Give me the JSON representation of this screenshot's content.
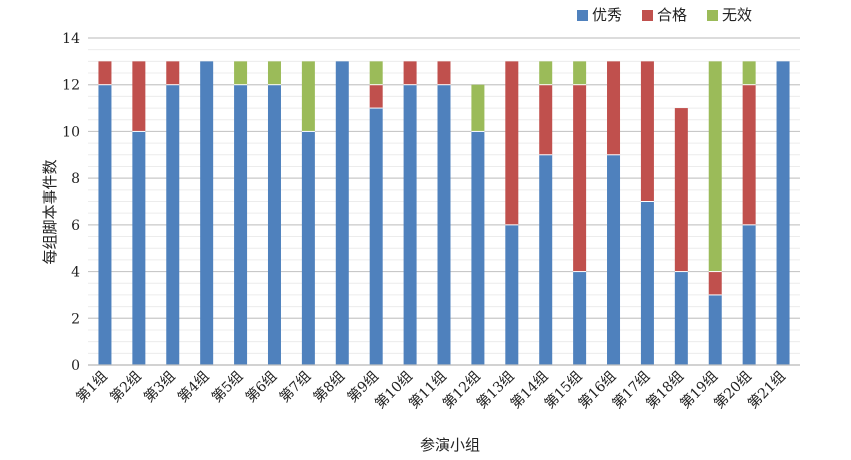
{
  "chart_data": {
    "type": "bar",
    "stacked": true,
    "title": "",
    "xlabel": "参演小组",
    "ylabel": "每组脚本事件数",
    "ylim": [
      0,
      14
    ],
    "yticks": [
      0,
      2,
      4,
      6,
      8,
      10,
      12,
      14
    ],
    "grid": true,
    "legend_position": "top-right",
    "categories": [
      "第1组",
      "第2组",
      "第3组",
      "第4组",
      "第5组",
      "第6组",
      "第7组",
      "第8组",
      "第9组",
      "第10组",
      "第11组",
      "第12组",
      "第13组",
      "第14组",
      "第15组",
      "第16组",
      "第17组",
      "第18组",
      "第19组",
      "第20组",
      "第21组"
    ],
    "series": [
      {
        "name": "优秀",
        "color": "#4f81bd",
        "values": [
          12,
          10,
          12,
          13,
          12,
          12,
          10,
          13,
          11,
          12,
          12,
          10,
          6,
          9,
          4,
          9,
          7,
          4,
          3,
          6,
          13
        ]
      },
      {
        "name": "合格",
        "color": "#c0504d",
        "values": [
          1,
          3,
          1,
          0,
          0,
          0,
          0,
          0,
          1,
          1,
          1,
          0,
          7,
          3,
          8,
          4,
          6,
          7,
          1,
          6,
          0
        ]
      },
      {
        "name": "无效",
        "color": "#9bbb59",
        "values": [
          0,
          0,
          0,
          0,
          1,
          1,
          3,
          0,
          1,
          0,
          0,
          2,
          0,
          1,
          1,
          0,
          0,
          0,
          9,
          1,
          0
        ]
      }
    ]
  }
}
